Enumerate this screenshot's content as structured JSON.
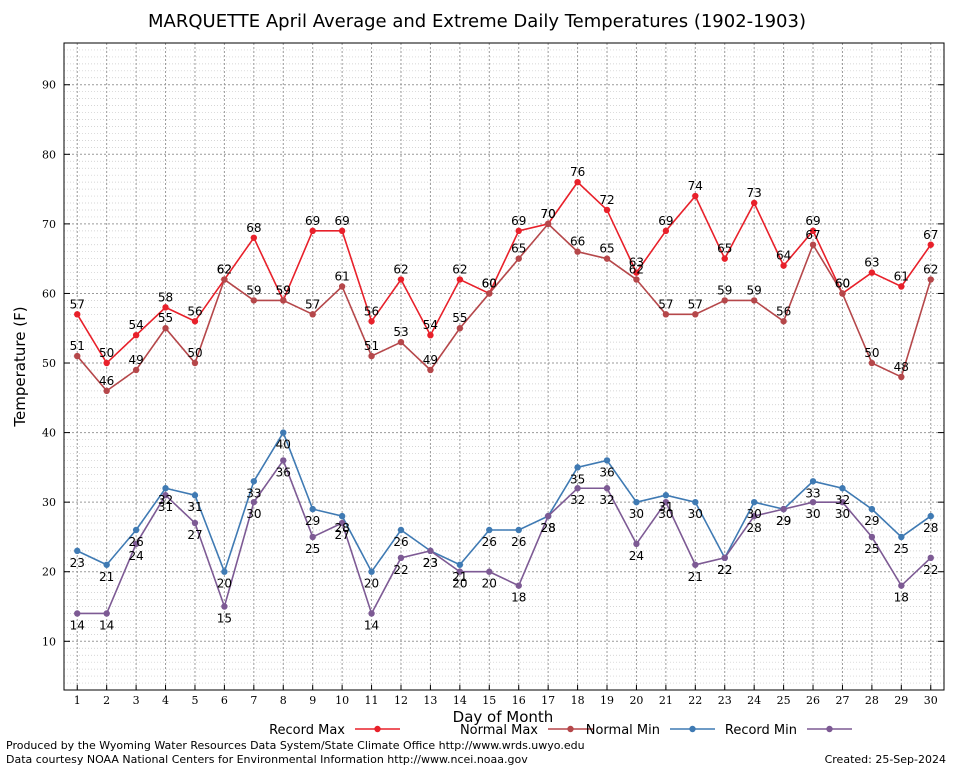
{
  "chart_data": {
    "type": "line",
    "title": "MARQUETTE April Average and Extreme Daily Temperatures (1902-1903)",
    "xlabel": "Day of Month",
    "ylabel": "Temperature (F)",
    "x": [
      1,
      2,
      3,
      4,
      5,
      6,
      7,
      8,
      9,
      10,
      11,
      12,
      13,
      14,
      15,
      16,
      17,
      18,
      19,
      20,
      21,
      22,
      23,
      24,
      25,
      26,
      27,
      28,
      29,
      30
    ],
    "xlim": [
      0.55,
      30.45
    ],
    "ylim": [
      3,
      96
    ],
    "yticks": [
      10,
      20,
      30,
      40,
      50,
      60,
      70,
      80,
      90
    ],
    "grid": true,
    "legend_position": "bottom",
    "series": [
      {
        "name": "Record Max",
        "color": "#e8202a",
        "values": [
          57,
          50,
          54,
          58,
          56,
          62,
          68,
          59,
          69,
          69,
          56,
          62,
          54,
          62,
          60,
          69,
          70,
          76,
          72,
          63,
          69,
          74,
          65,
          73,
          64,
          69,
          60,
          63,
          61,
          67
        ],
        "label_position": "above"
      },
      {
        "name": "Normal Max",
        "color": "#b5474a",
        "values": [
          51,
          46,
          49,
          55,
          50,
          62,
          59,
          59,
          57,
          61,
          51,
          53,
          49,
          55,
          60,
          65,
          70,
          66,
          65,
          62,
          57,
          57,
          59,
          59,
          56,
          67,
          60,
          50,
          48,
          62
        ],
        "label_position": "above"
      },
      {
        "name": "Normal Min",
        "color": "#3f7ab3",
        "values": [
          23,
          21,
          26,
          32,
          31,
          20,
          33,
          40,
          29,
          28,
          20,
          26,
          23,
          21,
          26,
          26,
          28,
          35,
          36,
          30,
          31,
          30,
          22,
          30,
          29,
          33,
          32,
          29,
          25,
          28
        ],
        "label_position": "below"
      },
      {
        "name": "Record Min",
        "color": "#7d5a94",
        "values": [
          14,
          14,
          24,
          31,
          27,
          15,
          30,
          36,
          25,
          27,
          14,
          22,
          23,
          20,
          20,
          18,
          28,
          32,
          32,
          24,
          30,
          21,
          22,
          28,
          29,
          30,
          30,
          25,
          18,
          22
        ],
        "label_position": "below"
      }
    ]
  },
  "footer": {
    "line1": "Produced by the Wyoming Water Resources Data System/State Climate Office http://www.wrds.uwyo.edu",
    "line2": "Data courtesy NOAA National Centers for Environmental Information http://www.ncei.noaa.gov",
    "created": "Created:  25-Sep-2024"
  }
}
